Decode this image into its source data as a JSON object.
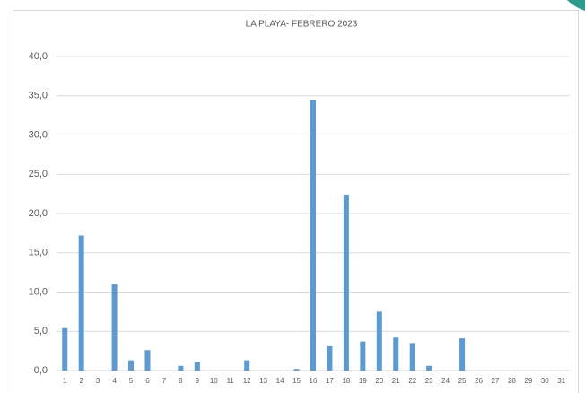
{
  "chart_data": {
    "type": "bar",
    "title": "LA PLAYA-  FEBRERO  2023",
    "categories": [
      "1",
      "2",
      "3",
      "4",
      "5",
      "6",
      "7",
      "8",
      "9",
      "10",
      "11",
      "12",
      "13",
      "14",
      "15",
      "16",
      "17",
      "18",
      "19",
      "20",
      "21",
      "22",
      "23",
      "24",
      "25",
      "26",
      "27",
      "28",
      "29",
      "30",
      "31"
    ],
    "values": [
      5.4,
      17.2,
      0,
      11.0,
      1.3,
      2.6,
      0,
      0.6,
      1.1,
      0,
      0,
      1.3,
      0,
      0,
      0.2,
      34.4,
      3.1,
      22.4,
      3.7,
      7.5,
      4.2,
      3.5,
      0.6,
      0,
      4.1,
      0,
      0,
      0,
      0,
      0,
      0
    ],
    "color": "#5b9bd5",
    "ylim": [
      0,
      40
    ],
    "yticks": [
      {
        "value": 0,
        "label": "0,0"
      },
      {
        "value": 5,
        "label": "5,0"
      },
      {
        "value": 10,
        "label": "10,0"
      },
      {
        "value": 15,
        "label": "15,0"
      },
      {
        "value": 20,
        "label": "20,0"
      },
      {
        "value": 25,
        "label": "25,0"
      },
      {
        "value": 30,
        "label": "30,0"
      },
      {
        "value": 35,
        "label": "35,0"
      },
      {
        "value": 40,
        "label": "40,0"
      }
    ],
    "grid": true
  }
}
